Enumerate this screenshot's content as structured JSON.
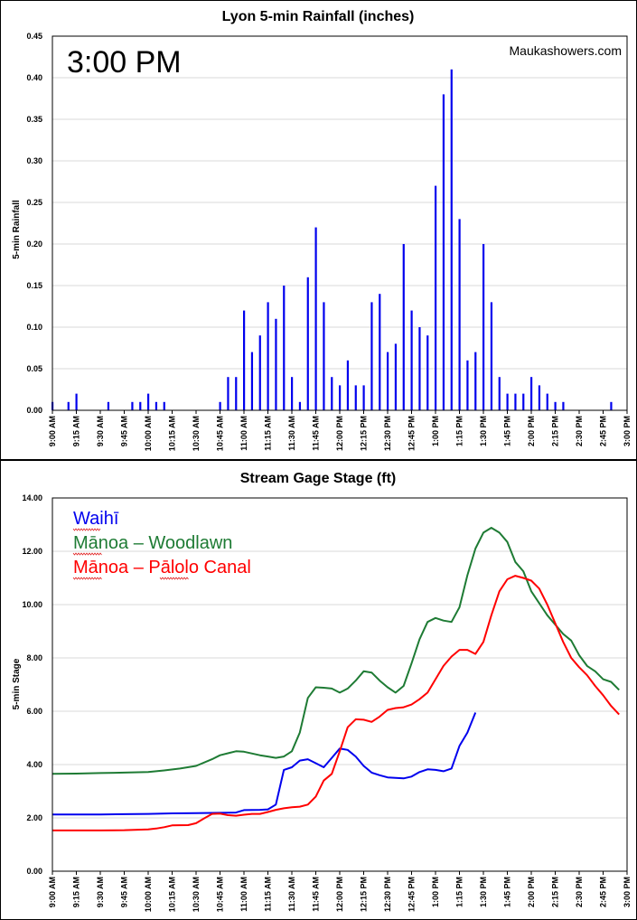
{
  "colors": {
    "blue": "#0000ee",
    "green": "#1e7b34",
    "red": "#ff0000",
    "spellcheck": "#e02020"
  },
  "chart_data": [
    {
      "type": "bar",
      "title": "Lyon 5-min Rainfall (inches)",
      "ylabel": "5-min Rainfall",
      "time_label": "3:00 PM",
      "credit": "Maukashowers.com",
      "ylim": [
        0,
        0.45
      ],
      "y_ticks": [
        "0.00",
        "0.05",
        "0.10",
        "0.15",
        "0.20",
        "0.25",
        "0.30",
        "0.35",
        "0.40",
        "0.45"
      ],
      "x_ticks": [
        "9:00 AM",
        "9:15 AM",
        "9:30 AM",
        "9:45 AM",
        "10:00 AM",
        "10:15 AM",
        "10:30 AM",
        "10:45 AM",
        "11:00 AM",
        "11:15 AM",
        "11:30 AM",
        "11:45 AM",
        "12:00 PM",
        "12:15 PM",
        "12:30 PM",
        "12:45 PM",
        "1:00 PM",
        "1:15 PM",
        "1:30 PM",
        "1:45 PM",
        "2:00 PM",
        "2:15 PM",
        "2:30 PM",
        "2:45 PM",
        "3:00 PM"
      ],
      "color": "#0000ee",
      "points": [
        {
          "t": "9:00 AM",
          "v": 0.01
        },
        {
          "t": "9:10 AM",
          "v": 0.01
        },
        {
          "t": "9:15 AM",
          "v": 0.02
        },
        {
          "t": "9:35 AM",
          "v": 0.01
        },
        {
          "t": "9:50 AM",
          "v": 0.01
        },
        {
          "t": "9:55 AM",
          "v": 0.01
        },
        {
          "t": "10:00 AM",
          "v": 0.02
        },
        {
          "t": "10:05 AM",
          "v": 0.01
        },
        {
          "t": "10:10 AM",
          "v": 0.01
        },
        {
          "t": "10:45 AM",
          "v": 0.01
        },
        {
          "t": "10:50 AM",
          "v": 0.04
        },
        {
          "t": "10:55 AM",
          "v": 0.04
        },
        {
          "t": "11:00 AM",
          "v": 0.12
        },
        {
          "t": "11:05 AM",
          "v": 0.07
        },
        {
          "t": "11:10 AM",
          "v": 0.09
        },
        {
          "t": "11:15 AM",
          "v": 0.13
        },
        {
          "t": "11:20 AM",
          "v": 0.11
        },
        {
          "t": "11:25 AM",
          "v": 0.15
        },
        {
          "t": "11:30 AM",
          "v": 0.04
        },
        {
          "t": "11:35 AM",
          "v": 0.01
        },
        {
          "t": "11:40 AM",
          "v": 0.16
        },
        {
          "t": "11:45 AM",
          "v": 0.22
        },
        {
          "t": "11:50 AM",
          "v": 0.13
        },
        {
          "t": "11:55 AM",
          "v": 0.04
        },
        {
          "t": "12:00 PM",
          "v": 0.03
        },
        {
          "t": "12:05 PM",
          "v": 0.06
        },
        {
          "t": "12:10 PM",
          "v": 0.03
        },
        {
          "t": "12:15 PM",
          "v": 0.03
        },
        {
          "t": "12:20 PM",
          "v": 0.13
        },
        {
          "t": "12:25 PM",
          "v": 0.14
        },
        {
          "t": "12:30 PM",
          "v": 0.07
        },
        {
          "t": "12:35 PM",
          "v": 0.08
        },
        {
          "t": "12:40 PM",
          "v": 0.2
        },
        {
          "t": "12:45 PM",
          "v": 0.12
        },
        {
          "t": "12:50 PM",
          "v": 0.1
        },
        {
          "t": "12:55 PM",
          "v": 0.09
        },
        {
          "t": "1:00 PM",
          "v": 0.27
        },
        {
          "t": "1:05 PM",
          "v": 0.38
        },
        {
          "t": "1:10 PM",
          "v": 0.41
        },
        {
          "t": "1:15 PM",
          "v": 0.23
        },
        {
          "t": "1:20 PM",
          "v": 0.06
        },
        {
          "t": "1:25 PM",
          "v": 0.07
        },
        {
          "t": "1:30 PM",
          "v": 0.2
        },
        {
          "t": "1:35 PM",
          "v": 0.13
        },
        {
          "t": "1:40 PM",
          "v": 0.04
        },
        {
          "t": "1:45 PM",
          "v": 0.02
        },
        {
          "t": "1:50 PM",
          "v": 0.02
        },
        {
          "t": "1:55 PM",
          "v": 0.02
        },
        {
          "t": "2:00 PM",
          "v": 0.04
        },
        {
          "t": "2:05 PM",
          "v": 0.03
        },
        {
          "t": "2:10 PM",
          "v": 0.02
        },
        {
          "t": "2:15 PM",
          "v": 0.01
        },
        {
          "t": "2:20 PM",
          "v": 0.01
        },
        {
          "t": "2:50 PM",
          "v": 0.01
        }
      ]
    },
    {
      "type": "line",
      "title": "Stream Gage Stage (ft)",
      "ylabel": "5-min Stage",
      "ylim": [
        0,
        14
      ],
      "y_ticks": [
        "0.00",
        "2.00",
        "4.00",
        "6.00",
        "8.00",
        "10.00",
        "12.00",
        "14.00"
      ],
      "x_ticks": [
        "9:00 AM",
        "9:15 AM",
        "9:30 AM",
        "9:45 AM",
        "10:00 AM",
        "10:15 AM",
        "10:30 AM",
        "10:45 AM",
        "11:00 AM",
        "11:15 AM",
        "11:30 AM",
        "11:45 AM",
        "12:00 PM",
        "12:15 PM",
        "12:30 PM",
        "12:45 PM",
        "1:00 PM",
        "1:15 PM",
        "1:30 PM",
        "1:45 PM",
        "2:00 PM",
        "2:15 PM",
        "2:30 PM",
        "2:45 PM",
        "3:00 PM"
      ],
      "series": [
        {
          "name": "Waihī",
          "color": "#0000ee",
          "points": [
            {
              "t": "9:00 AM",
              "v": 2.13
            },
            {
              "t": "9:15 AM",
              "v": 2.13
            },
            {
              "t": "9:30 AM",
              "v": 2.13
            },
            {
              "t": "9:45 AM",
              "v": 2.14
            },
            {
              "t": "10:00 AM",
              "v": 2.15
            },
            {
              "t": "10:15 AM",
              "v": 2.17
            },
            {
              "t": "10:30 AM",
              "v": 2.18
            },
            {
              "t": "10:45 AM",
              "v": 2.19
            },
            {
              "t": "10:55 AM",
              "v": 2.2
            },
            {
              "t": "11:00 AM",
              "v": 2.29
            },
            {
              "t": "11:10 AM",
              "v": 2.3
            },
            {
              "t": "11:15 AM",
              "v": 2.32
            },
            {
              "t": "11:20 AM",
              "v": 2.5
            },
            {
              "t": "11:25 AM",
              "v": 3.8
            },
            {
              "t": "11:30 AM",
              "v": 3.9
            },
            {
              "t": "11:35 AM",
              "v": 4.15
            },
            {
              "t": "11:40 AM",
              "v": 4.2
            },
            {
              "t": "11:45 AM",
              "v": 4.05
            },
            {
              "t": "11:50 AM",
              "v": 3.9
            },
            {
              "t": "11:55 AM",
              "v": 4.25
            },
            {
              "t": "12:00 PM",
              "v": 4.6
            },
            {
              "t": "12:05 PM",
              "v": 4.55
            },
            {
              "t": "12:10 PM",
              "v": 4.3
            },
            {
              "t": "12:15 PM",
              "v": 3.95
            },
            {
              "t": "12:20 PM",
              "v": 3.7
            },
            {
              "t": "12:25 PM",
              "v": 3.6
            },
            {
              "t": "12:30 PM",
              "v": 3.52
            },
            {
              "t": "12:35 PM",
              "v": 3.5
            },
            {
              "t": "12:40 PM",
              "v": 3.48
            },
            {
              "t": "12:45 PM",
              "v": 3.55
            },
            {
              "t": "12:50 PM",
              "v": 3.72
            },
            {
              "t": "12:55 PM",
              "v": 3.82
            },
            {
              "t": "1:00 PM",
              "v": 3.8
            },
            {
              "t": "1:05 PM",
              "v": 3.75
            },
            {
              "t": "1:10 PM",
              "v": 3.85
            },
            {
              "t": "1:15 PM",
              "v": 4.7
            },
            {
              "t": "1:20 PM",
              "v": 5.2
            },
            {
              "t": "1:25 PM",
              "v": 5.95
            }
          ]
        },
        {
          "name": "Mānoa – Woodlawn",
          "color": "#1e7b34",
          "points": [
            {
              "t": "9:00 AM",
              "v": 3.65
            },
            {
              "t": "9:15 AM",
              "v": 3.66
            },
            {
              "t": "9:30 AM",
              "v": 3.68
            },
            {
              "t": "9:45 AM",
              "v": 3.7
            },
            {
              "t": "10:00 AM",
              "v": 3.72
            },
            {
              "t": "10:10 AM",
              "v": 3.78
            },
            {
              "t": "10:20 AM",
              "v": 3.85
            },
            {
              "t": "10:30 AM",
              "v": 3.95
            },
            {
              "t": "10:40 AM",
              "v": 4.2
            },
            {
              "t": "10:45 AM",
              "v": 4.35
            },
            {
              "t": "10:55 AM",
              "v": 4.5
            },
            {
              "t": "11:00 AM",
              "v": 4.48
            },
            {
              "t": "11:10 AM",
              "v": 4.35
            },
            {
              "t": "11:15 AM",
              "v": 4.3
            },
            {
              "t": "11:20 AM",
              "v": 4.25
            },
            {
              "t": "11:25 AM",
              "v": 4.3
            },
            {
              "t": "11:30 AM",
              "v": 4.5
            },
            {
              "t": "11:35 AM",
              "v": 5.2
            },
            {
              "t": "11:40 AM",
              "v": 6.5
            },
            {
              "t": "11:45 AM",
              "v": 6.9
            },
            {
              "t": "11:50 AM",
              "v": 6.88
            },
            {
              "t": "11:55 AM",
              "v": 6.85
            },
            {
              "t": "12:00 PM",
              "v": 6.7
            },
            {
              "t": "12:05 PM",
              "v": 6.85
            },
            {
              "t": "12:10 PM",
              "v": 7.15
            },
            {
              "t": "12:15 PM",
              "v": 7.5
            },
            {
              "t": "12:20 PM",
              "v": 7.45
            },
            {
              "t": "12:25 PM",
              "v": 7.15
            },
            {
              "t": "12:30 PM",
              "v": 6.9
            },
            {
              "t": "12:35 PM",
              "v": 6.7
            },
            {
              "t": "12:40 PM",
              "v": 6.95
            },
            {
              "t": "12:45 PM",
              "v": 7.8
            },
            {
              "t": "12:50 PM",
              "v": 8.7
            },
            {
              "t": "12:55 PM",
              "v": 9.35
            },
            {
              "t": "1:00 PM",
              "v": 9.5
            },
            {
              "t": "1:05 PM",
              "v": 9.4
            },
            {
              "t": "1:10 PM",
              "v": 9.35
            },
            {
              "t": "1:15 PM",
              "v": 9.9
            },
            {
              "t": "1:20 PM",
              "v": 11.1
            },
            {
              "t": "1:25 PM",
              "v": 12.1
            },
            {
              "t": "1:30 PM",
              "v": 12.7
            },
            {
              "t": "1:35 PM",
              "v": 12.88
            },
            {
              "t": "1:40 PM",
              "v": 12.7
            },
            {
              "t": "1:45 PM",
              "v": 12.35
            },
            {
              "t": "1:50 PM",
              "v": 11.6
            },
            {
              "t": "1:55 PM",
              "v": 11.25
            },
            {
              "t": "2:00 PM",
              "v": 10.5
            },
            {
              "t": "2:10 PM",
              "v": 9.6
            },
            {
              "t": "2:20 PM",
              "v": 8.9
            },
            {
              "t": "2:25 PM",
              "v": 8.65
            },
            {
              "t": "2:30 PM",
              "v": 8.1
            },
            {
              "t": "2:35 PM",
              "v": 7.7
            },
            {
              "t": "2:40 PM",
              "v": 7.5
            },
            {
              "t": "2:45 PM",
              "v": 7.2
            },
            {
              "t": "2:50 PM",
              "v": 7.1
            },
            {
              "t": "2:55 PM",
              "v": 6.8
            }
          ]
        },
        {
          "name": "Mānoa – Pālolo Canal",
          "color": "#ff0000",
          "points": [
            {
              "t": "9:00 AM",
              "v": 1.53
            },
            {
              "t": "9:15 AM",
              "v": 1.53
            },
            {
              "t": "9:30 AM",
              "v": 1.53
            },
            {
              "t": "9:45 AM",
              "v": 1.54
            },
            {
              "t": "10:00 AM",
              "v": 1.57
            },
            {
              "t": "10:05 AM",
              "v": 1.6
            },
            {
              "t": "10:10 AM",
              "v": 1.65
            },
            {
              "t": "10:15 AM",
              "v": 1.72
            },
            {
              "t": "10:25 AM",
              "v": 1.73
            },
            {
              "t": "10:30 AM",
              "v": 1.8
            },
            {
              "t": "10:35 AM",
              "v": 1.98
            },
            {
              "t": "10:40 AM",
              "v": 2.15
            },
            {
              "t": "10:45 AM",
              "v": 2.16
            },
            {
              "t": "10:50 AM",
              "v": 2.1
            },
            {
              "t": "10:55 AM",
              "v": 2.08
            },
            {
              "t": "11:00 AM",
              "v": 2.12
            },
            {
              "t": "11:05 AM",
              "v": 2.15
            },
            {
              "t": "11:10 AM",
              "v": 2.15
            },
            {
              "t": "11:15 AM",
              "v": 2.22
            },
            {
              "t": "11:20 AM",
              "v": 2.3
            },
            {
              "t": "11:25 AM",
              "v": 2.36
            },
            {
              "t": "11:30 AM",
              "v": 2.4
            },
            {
              "t": "11:35 AM",
              "v": 2.42
            },
            {
              "t": "11:40 AM",
              "v": 2.5
            },
            {
              "t": "11:45 AM",
              "v": 2.8
            },
            {
              "t": "11:50 AM",
              "v": 3.4
            },
            {
              "t": "11:55 AM",
              "v": 3.65
            },
            {
              "t": "12:00 PM",
              "v": 4.5
            },
            {
              "t": "12:05 PM",
              "v": 5.4
            },
            {
              "t": "12:10 PM",
              "v": 5.7
            },
            {
              "t": "12:15 PM",
              "v": 5.68
            },
            {
              "t": "12:20 PM",
              "v": 5.6
            },
            {
              "t": "12:25 PM",
              "v": 5.8
            },
            {
              "t": "12:30 PM",
              "v": 6.05
            },
            {
              "t": "12:35 PM",
              "v": 6.12
            },
            {
              "t": "12:40 PM",
              "v": 6.15
            },
            {
              "t": "12:45 PM",
              "v": 6.25
            },
            {
              "t": "12:50 PM",
              "v": 6.45
            },
            {
              "t": "12:55 PM",
              "v": 6.7
            },
            {
              "t": "1:00 PM",
              "v": 7.2
            },
            {
              "t": "1:05 PM",
              "v": 7.7
            },
            {
              "t": "1:10 PM",
              "v": 8.05
            },
            {
              "t": "1:15 PM",
              "v": 8.3
            },
            {
              "t": "1:20 PM",
              "v": 8.3
            },
            {
              "t": "1:25 PM",
              "v": 8.15
            },
            {
              "t": "1:30 PM",
              "v": 8.6
            },
            {
              "t": "1:35 PM",
              "v": 9.6
            },
            {
              "t": "1:40 PM",
              "v": 10.5
            },
            {
              "t": "1:45 PM",
              "v": 10.95
            },
            {
              "t": "1:50 PM",
              "v": 11.08
            },
            {
              "t": "1:55 PM",
              "v": 11.0
            },
            {
              "t": "2:00 PM",
              "v": 10.9
            },
            {
              "t": "2:05 PM",
              "v": 10.6
            },
            {
              "t": "2:10 PM",
              "v": 10.0
            },
            {
              "t": "2:15 PM",
              "v": 9.3
            },
            {
              "t": "2:20 PM",
              "v": 8.6
            },
            {
              "t": "2:25 PM",
              "v": 8.0
            },
            {
              "t": "2:30 PM",
              "v": 7.65
            },
            {
              "t": "2:35 PM",
              "v": 7.35
            },
            {
              "t": "2:40 PM",
              "v": 6.95
            },
            {
              "t": "2:45 PM",
              "v": 6.6
            },
            {
              "t": "2:50 PM",
              "v": 6.2
            },
            {
              "t": "2:55 PM",
              "v": 5.88
            }
          ]
        }
      ]
    }
  ]
}
